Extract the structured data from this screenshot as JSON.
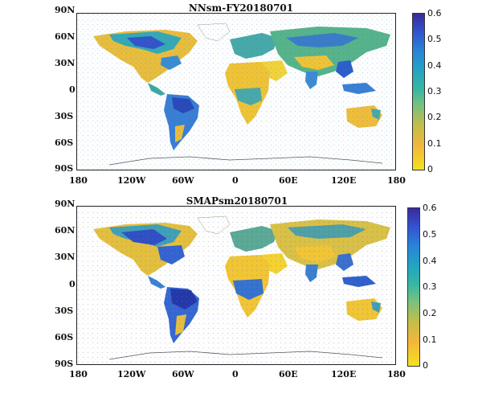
{
  "maps": [
    {
      "title": "NNsm-FY20180701",
      "lat_ticks": [
        "90N",
        "60N",
        "30N",
        "0",
        "30S",
        "60S",
        "90S"
      ],
      "lon_ticks": [
        "180",
        "120W",
        "60W",
        "0",
        "60E",
        "120E",
        "180"
      ],
      "colorbar_ticks": [
        "0.6",
        "0.5",
        "0.4",
        "0.3",
        "0.2",
        "0.1",
        "0"
      ]
    },
    {
      "title": "SMAPsm20180701",
      "lat_ticks": [
        "90N",
        "60N",
        "30N",
        "0",
        "30S",
        "60S",
        "90S"
      ],
      "lon_ticks": [
        "180",
        "120W",
        "60W",
        "0",
        "60E",
        "120E",
        "180"
      ],
      "colorbar_ticks": [
        "0.6",
        "0.5",
        "0.4",
        "0.3",
        "0.2",
        "0.1",
        "0"
      ]
    }
  ],
  "colorbar": {
    "min": 0,
    "max": 0.6,
    "colors": [
      "#f5e11f",
      "#f2b73c",
      "#7fc17a",
      "#22a3c3",
      "#3254d1",
      "#3a2a9a"
    ]
  }
}
